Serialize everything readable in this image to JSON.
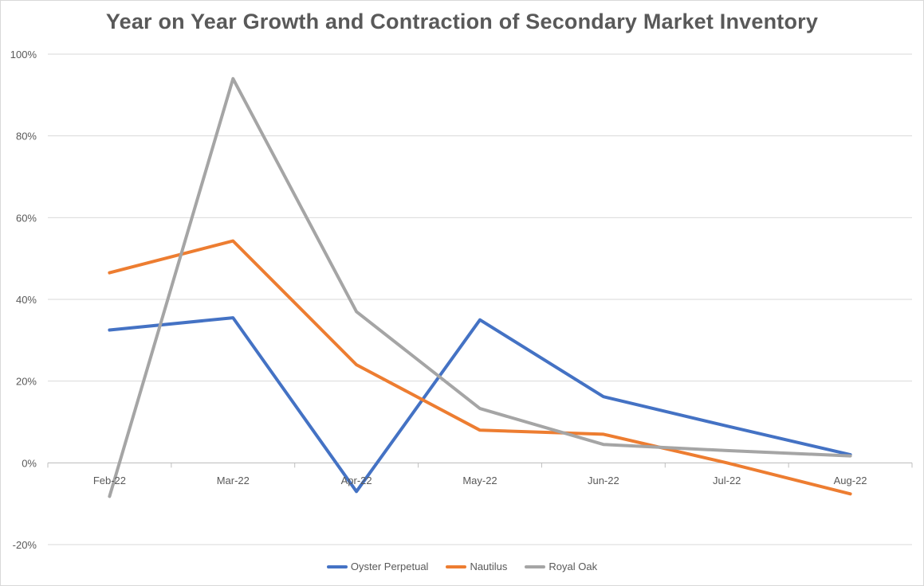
{
  "chart_data": {
    "type": "line",
    "title": "Year on Year Growth and Contraction of Secondary Market Inventory",
    "categories": [
      "Feb-22",
      "Mar-22",
      "Apr-22",
      "May-22",
      "Jun-22",
      "Jul-22",
      "Aug-22"
    ],
    "y_ticks": [
      "-20%",
      "0%",
      "20%",
      "40%",
      "60%",
      "80%",
      "100%"
    ],
    "ylim": [
      -20,
      100
    ],
    "y_unit": "%",
    "grid": true,
    "legend_position": "bottom",
    "series": [
      {
        "name": "Oyster Perpetual",
        "color": "#4472c4",
        "values": [
          32.5,
          35.5,
          -7,
          35,
          16.2,
          9,
          2
        ]
      },
      {
        "name": "Nautilus",
        "color": "#ed7d31",
        "values": [
          46.5,
          54.3,
          24,
          8,
          7,
          0,
          -7.6
        ]
      },
      {
        "name": "Royal Oak",
        "color": "#a5a5a5",
        "values": [
          -8.2,
          94,
          37,
          13.3,
          4.5,
          3,
          1.7
        ]
      }
    ]
  }
}
